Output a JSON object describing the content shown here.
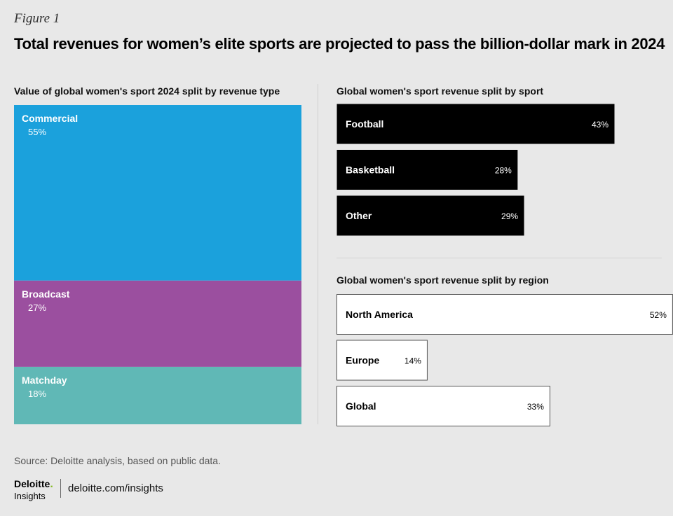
{
  "figure_label": "Figure 1",
  "title": "Total revenues for women’s elite sports are projected to pass the billion-dollar mark in 2024",
  "source": "Source: Deloitte analysis, based on public data.",
  "brand": {
    "name": "Deloitte",
    "dot": ".",
    "sub": "Insights",
    "url": "deloitte.com/insights"
  },
  "chart_data": [
    {
      "type": "bar",
      "title": "Value of global women's sport 2024 split by revenue type",
      "orientation": "stacked-vertical",
      "categories": [
        "Commercial",
        "Broadcast",
        "Matchday"
      ],
      "values": [
        55,
        27,
        18
      ],
      "labels": [
        "55%",
        "27%",
        "18%"
      ],
      "unit": "%",
      "colors": [
        "#1ba1dc",
        "#9b4f9f",
        "#60b8b6"
      ]
    },
    {
      "type": "bar",
      "title": "Global women's sport revenue split by sport",
      "orientation": "horizontal",
      "categories": [
        "Football",
        "Basketball",
        "Other"
      ],
      "values": [
        43,
        28,
        29
      ],
      "labels": [
        "43%",
        "28%",
        "29%"
      ],
      "unit": "%",
      "bar_color": "#000000",
      "text_color": "#ffffff"
    },
    {
      "type": "bar",
      "title": "Global women's sport revenue split by region",
      "orientation": "horizontal",
      "categories": [
        "North America",
        "Europe",
        "Global"
      ],
      "values": [
        52,
        14,
        33
      ],
      "labels": [
        "52%",
        "14%",
        "33%"
      ],
      "unit": "%",
      "bar_color": "#ffffff",
      "text_color": "#000000"
    }
  ]
}
